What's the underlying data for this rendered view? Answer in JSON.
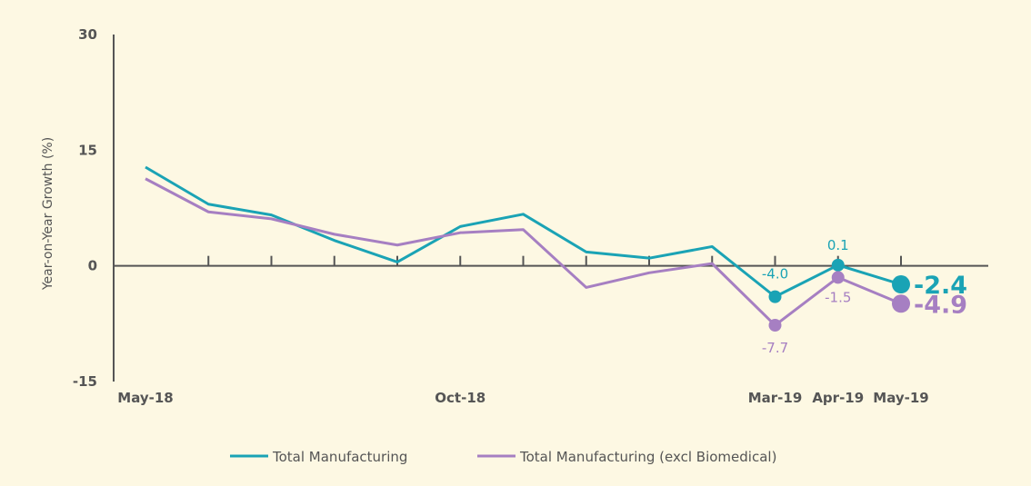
{
  "chart_data": {
    "type": "line",
    "title": "",
    "ylabel": "Year-on-Year Growth (%)",
    "xlabel": "",
    "ylim": [
      -15,
      30
    ],
    "yticks": [
      "30",
      "15",
      "0",
      "-15"
    ],
    "x": [
      "May-18",
      "Jun-18",
      "Jul-18",
      "Aug-18",
      "Sep-18",
      "Oct-18",
      "Nov-18",
      "Dec-18",
      "Jan-19",
      "Feb-19",
      "Mar-19",
      "Apr-19",
      "May-19"
    ],
    "xtick_labels": [
      "May-18",
      "Oct-18",
      "Mar-19",
      "Apr-19",
      "May-19"
    ],
    "series": [
      {
        "name": "Total Manufacturing",
        "color": "#1aa3b5",
        "values": [
          12.8,
          8.0,
          6.6,
          3.3,
          0.5,
          5.1,
          6.7,
          1.8,
          1.0,
          2.5,
          -4.0,
          0.1,
          -2.4
        ],
        "point_labels": {
          "10": "-4.0",
          "11": "0.1"
        },
        "end_label": "-2.4"
      },
      {
        "name": "Total Manufacturing (excl Biomedical)",
        "color": "#a67fc2",
        "values": [
          11.3,
          7.0,
          6.1,
          4.1,
          2.7,
          4.3,
          4.7,
          -2.8,
          -0.9,
          0.3,
          -7.7,
          -1.5,
          -4.9
        ],
        "point_labels": {
          "10": "-7.7",
          "11": "-1.5"
        },
        "end_label": "-4.9"
      }
    ],
    "legend_position": "bottom",
    "grid": false
  }
}
